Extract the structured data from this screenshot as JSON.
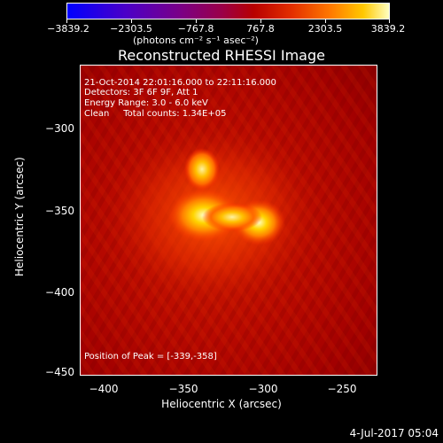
{
  "colorbar": {
    "tick_labels": [
      "−3839.2",
      "−2303.5",
      "−767.8",
      "767.8",
      "2303.5",
      "3839.2"
    ],
    "units": "(photons cm⁻² s⁻¹ asec⁻²)"
  },
  "title": "Reconstructed RHESSI Image",
  "annotations": {
    "time": "21-Oct-2014 22:01:16.000 to 22:11:16.000",
    "detectors": "Detectors: 3F 6F 9F, Att 1",
    "energy": "Energy Range: 3.0 - 6.0 keV",
    "clean": "Clean     Total counts: 1.34E+05",
    "peak": "Position of Peak = [-339,-358]"
  },
  "axes": {
    "x_label": "Heliocentric X (arcsec)",
    "y_label": "Heliocentric Y (arcsec)",
    "x_ticks": [
      "−400",
      "−350",
      "−300",
      "−250"
    ],
    "y_ticks": [
      "−300",
      "−350",
      "−400",
      "−450"
    ]
  },
  "footer": {
    "timestamp": "4-Jul-2017 05:04"
  }
}
